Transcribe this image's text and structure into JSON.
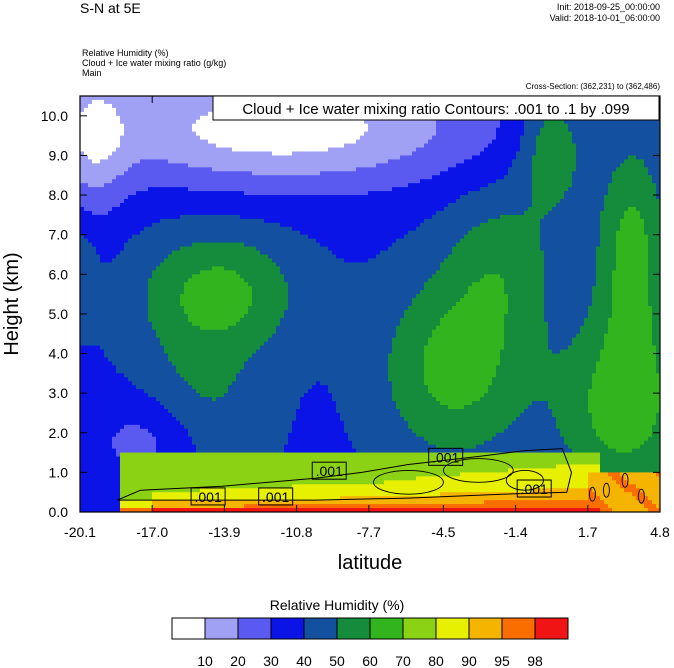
{
  "header": {
    "title": "S-N at 5E",
    "init": "Init: 2018-09-25_00:00:00",
    "valid": "Valid: 2018-10-01_06:00:00",
    "fields": [
      "Relative Humidity   (%)",
      "Cloud + Ice water mixing ratio   (g/kg)",
      "Main"
    ],
    "cross_section": "Cross-Section: (362,231) to (362,486)"
  },
  "chart_data": {
    "type": "heatmap",
    "title": "",
    "xlabel": "latitude",
    "ylabel": "Height (km)",
    "x_ticks": [
      "-20.1",
      "-17.0",
      "-13.9",
      "-10.8",
      "-7.7",
      "-4.5",
      "-1.4",
      "1.7",
      "4.8"
    ],
    "y_ticks": [
      "0.0",
      "1.0",
      "2.0",
      "3.0",
      "4.0",
      "5.0",
      "6.0",
      "7.0",
      "8.0",
      "9.0",
      "10.0"
    ],
    "xlim": [
      -20.1,
      4.8
    ],
    "ylim": [
      0.0,
      10.5
    ],
    "grid": false,
    "contour_info": "Cloud + Ice water mixing ratio Contours: .001 to .1 by .099",
    "contour_labels": [
      {
        "text": ".001",
        "x": -14.6,
        "y": 0.38
      },
      {
        "text": ".001",
        "x": -11.7,
        "y": 0.38
      },
      {
        "text": ".001",
        "x": -9.4,
        "y": 1.03
      },
      {
        "text": ".001",
        "x": -4.4,
        "y": 1.38
      },
      {
        "text": ".001",
        "x": -0.6,
        "y": 0.58
      }
    ],
    "colorbar": {
      "title": "Relative Humidity  (%)",
      "levels": [
        "10",
        "20",
        "30",
        "40",
        "50",
        "60",
        "70",
        "80",
        "90",
        "95",
        "98"
      ],
      "colors": [
        "#ffffff",
        "#a0a0f5",
        "#5a5af0",
        "#0a14e6",
        "#1450a0",
        "#148c3c",
        "#32b41e",
        "#8cd214",
        "#e6f000",
        "#f5b400",
        "#fa6e00",
        "#f01414"
      ]
    }
  }
}
